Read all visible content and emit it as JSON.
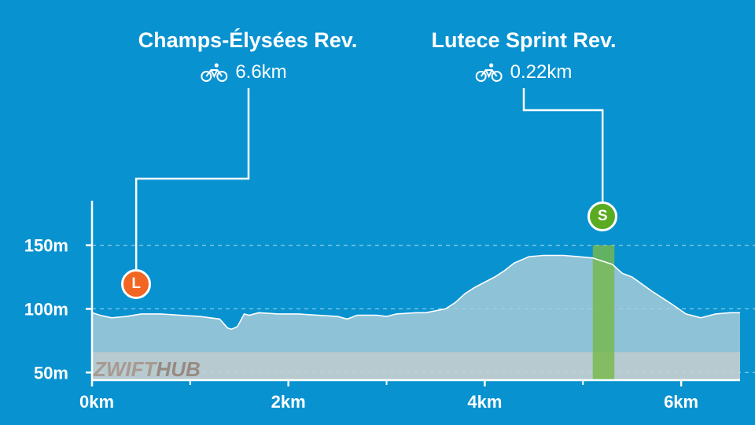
{
  "callouts": [
    {
      "title": "Champs-Élysées Rev.",
      "distance": "6.6km",
      "icon": "bicycle-icon",
      "marker_letter": "L",
      "marker_color": "#f26522",
      "at_km": 0.45
    },
    {
      "title": "Lutece Sprint Rev.",
      "distance": "0.22km",
      "icon": "bicycle-icon",
      "marker_letter": "S",
      "marker_color": "#5aaa22",
      "at_km": 5.2
    }
  ],
  "watermark": {
    "part1": "ZWIFT",
    "part2": "HUB"
  },
  "colors": {
    "background": "#0892d0",
    "profile_fill": "#b3cfd9",
    "profile_line": "#ffffff",
    "base_band": "#c3b5ac",
    "sprint_segment": "#77b84a"
  },
  "chart_data": {
    "type": "area",
    "title": "",
    "xlabel": "",
    "ylabel": "",
    "x_unit": "km",
    "y_unit": "m",
    "xlim": [
      0,
      6.6
    ],
    "ylim": [
      44,
      185
    ],
    "x_ticks": [
      {
        "value": 0,
        "label": "0km"
      },
      {
        "value": 2,
        "label": "2km"
      },
      {
        "value": 4,
        "label": "4km"
      },
      {
        "value": 6,
        "label": "6km"
      }
    ],
    "x_minor_ticks": [
      1,
      3,
      5
    ],
    "y_ticks": [
      {
        "value": 50,
        "label": "50m"
      },
      {
        "value": 100,
        "label": "100m"
      },
      {
        "value": 150,
        "label": "150m"
      }
    ],
    "grid": "dashed horizontal at y ticks",
    "base_band_top": 66,
    "segments": [
      {
        "name": "Lutece Sprint Rev.",
        "start_km": 5.1,
        "end_km": 5.32
      }
    ],
    "series": [
      {
        "x": [
          0,
          0.08,
          0.2,
          0.35,
          0.5,
          0.7,
          0.9,
          1.1,
          1.3,
          1.38,
          1.42,
          1.48,
          1.55,
          1.6,
          1.7,
          1.9,
          2.1,
          2.3,
          2.5,
          2.6,
          2.7,
          2.9,
          3.0,
          3.1,
          3.3,
          3.4,
          3.6,
          3.7,
          3.8,
          3.9,
          4.0,
          4.1,
          4.2,
          4.3,
          4.45,
          4.6,
          4.8,
          4.95,
          5.1,
          5.3,
          5.4,
          5.5,
          5.7,
          5.9,
          6.05,
          6.2,
          6.35,
          6.5,
          6.6
        ],
        "y": [
          97,
          95,
          93,
          94,
          96,
          96,
          95,
          94,
          92,
          85,
          84,
          86,
          96,
          95,
          97,
          96,
          96,
          95,
          94,
          92,
          95,
          95,
          94,
          96,
          97,
          97,
          100,
          105,
          112,
          117,
          121,
          125,
          130,
          136,
          141,
          142,
          142,
          141,
          140,
          135,
          128,
          125,
          114,
          104,
          96,
          93,
          96,
          97,
          97
        ]
      }
    ]
  }
}
